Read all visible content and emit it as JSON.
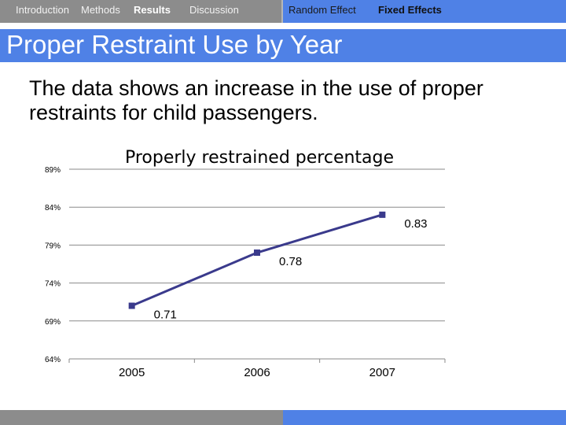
{
  "nav": {
    "items_left": [
      "Introduction",
      "Methods",
      "Results",
      "Discussion"
    ],
    "items_right": [
      "Random Effect",
      "Fixed Effects"
    ],
    "active_left": "Results",
    "active_right": "Fixed Effects"
  },
  "slide": {
    "title": "Proper Restraint Use by Year",
    "body": "The data shows an increase in the use of proper restraints for child passengers."
  },
  "colors": {
    "nav_gray": "#8c8c8c",
    "accent_blue": "#4f81e6",
    "series_line": "#3a3a8c"
  },
  "chart_data": {
    "type": "line",
    "title": "Properly restrained percentage",
    "categories": [
      "2005",
      "2006",
      "2007"
    ],
    "series": [
      {
        "name": "Properly restrained",
        "values": [
          0.71,
          0.78,
          0.83
        ],
        "labels": [
          "0.71",
          "0.78",
          "0.83"
        ]
      }
    ],
    "yticks": [
      0.64,
      0.69,
      0.74,
      0.79,
      0.84,
      0.89
    ],
    "ytick_labels": [
      "64%",
      "69%",
      "74%",
      "79%",
      "84%",
      "89%"
    ],
    "ylim": [
      0.64,
      0.89
    ],
    "grid": true,
    "xlabel": "",
    "ylabel": ""
  }
}
